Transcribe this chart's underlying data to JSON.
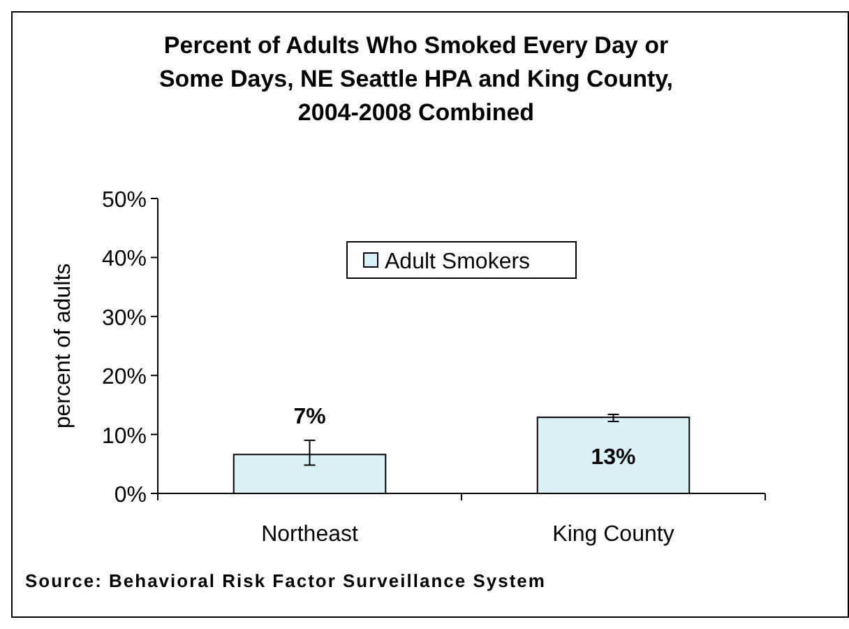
{
  "chart_data": {
    "type": "bar",
    "title": "Percent of Adults Who Smoked Every Day or\nSome Days, NE Seattle HPA and King County,\n2004-2008 Combined",
    "ylabel": "percent of adults",
    "categories": [
      "Northeast",
      "King County"
    ],
    "series": [
      {
        "name": "Adult Smokers",
        "color": "#d9f1f7",
        "values": [
          6.6,
          12.9
        ],
        "errors": [
          [
            4.8,
            9.0
          ],
          [
            12.2,
            13.4
          ]
        ],
        "value_labels": [
          "7%",
          "13%"
        ]
      }
    ],
    "ylim": [
      0,
      50
    ],
    "yticks": [
      {
        "value": 0,
        "label": "0%"
      },
      {
        "value": 10,
        "label": "10%"
      },
      {
        "value": 20,
        "label": "20%"
      },
      {
        "value": 30,
        "label": "30%"
      },
      {
        "value": 40,
        "label": "40%"
      },
      {
        "value": 50,
        "label": "50%"
      }
    ],
    "grid": false,
    "legend": "top",
    "annotations": [
      "Source: Behavioral Risk Factor Surveillance System"
    ]
  }
}
